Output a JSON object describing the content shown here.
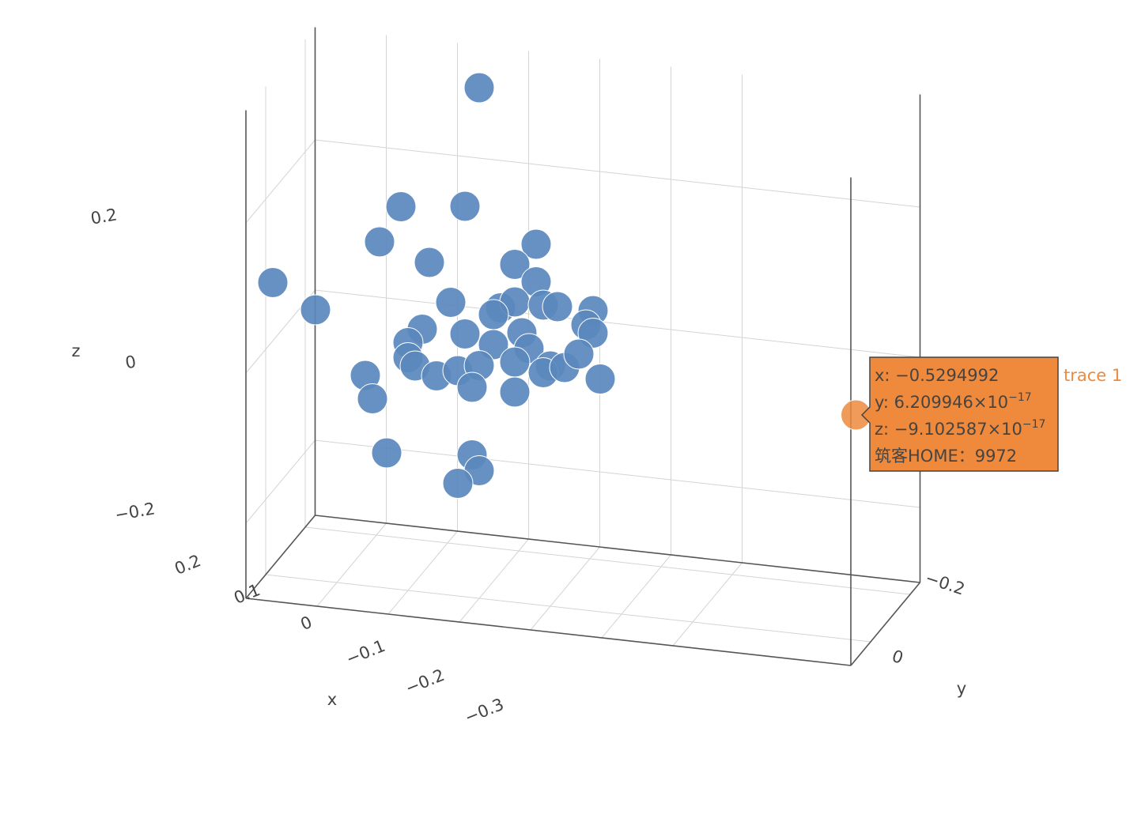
{
  "chart_data": {
    "type": "scatter3d",
    "xaxis_title": "x",
    "yaxis_title": "y",
    "zaxis_title": "z",
    "xlim": [
      -0.55,
      0.3
    ],
    "ylim": [
      -0.25,
      0.1
    ],
    "zlim": [
      -0.3,
      0.35
    ],
    "xticks": [
      {
        "value": 0.2,
        "label": "0.2"
      },
      {
        "value": 0.1,
        "label": "0.1"
      },
      0,
      {
        "value": -0.1,
        "label": "−0.1"
      },
      {
        "value": -0.2,
        "label": "−0.2"
      },
      {
        "value": -0.3,
        "label": "−0.3"
      }
    ],
    "yticks": [
      {
        "value": -0.2,
        "label": "−0.2"
      },
      0
    ],
    "zticks": [
      {
        "value": 0.2,
        "label": "0.2"
      },
      0,
      {
        "value": -0.2,
        "label": "−0.2"
      }
    ],
    "grid": true,
    "series": [
      {
        "name": "trace 1",
        "color": "#5a88bd",
        "x": [
          0,
          0.11,
          0.02,
          0.14,
          0.07,
          0.29,
          0.23,
          -0.08,
          -0.05,
          -0.08,
          0.04,
          -0.03,
          -0.05,
          -0.09,
          -0.11,
          -0.16,
          -0.15,
          -0.16,
          -0.02,
          0.08,
          0.1,
          0.02,
          -0.02,
          -0.06,
          -0.07,
          0.1,
          0.09,
          0.06,
          0.03,
          0,
          -0.05,
          -0.1,
          -0.09,
          -0.12,
          -0.14,
          -0.17,
          0.16,
          0.15,
          0.01,
          -0.05,
          0.13,
          0.01,
          0,
          0.03
        ],
        "y": [
          0,
          0,
          0,
          0,
          0,
          0,
          0,
          0,
          0,
          0,
          0,
          0,
          0,
          0,
          0,
          0,
          0,
          0,
          0,
          0,
          0,
          0,
          0,
          0,
          0,
          0,
          0,
          0,
          0,
          0,
          0,
          0,
          0,
          0,
          0,
          0,
          0,
          0,
          0,
          0,
          0,
          0,
          0,
          0
        ],
        "z": [
          0.38,
          0.21,
          0.22,
          0.16,
          0.14,
          0.09,
          0.06,
          0.18,
          0.15,
          0.13,
          0.09,
          0.09,
          0.1,
          0.1,
          0.1,
          0.1,
          0.08,
          0.07,
          0.08,
          0.05,
          0.03,
          0.05,
          0.04,
          0.06,
          0.04,
          0.01,
          0,
          -0.01,
          0,
          0.01,
          0.02,
          0.02,
          0.01,
          0.02,
          0.04,
          0.01,
          -0.02,
          -0.05,
          -0.02,
          -0.02,
          -0.12,
          -0.11,
          -0.13,
          -0.15
        ]
      }
    ],
    "hover": {
      "x": -0.5294992,
      "y": 6.209946e-17,
      "z": -9.102587e-17,
      "color": "#ef8a3d",
      "lines": [
        {
          "text": "x: −0.5294992"
        },
        {
          "text": "y: 6.209946×10",
          "sup": "−17"
        },
        {
          "text": "z: −9.102587×10",
          "sup": "−17"
        },
        {
          "text": "筑客HOME：9972"
        }
      ]
    }
  }
}
